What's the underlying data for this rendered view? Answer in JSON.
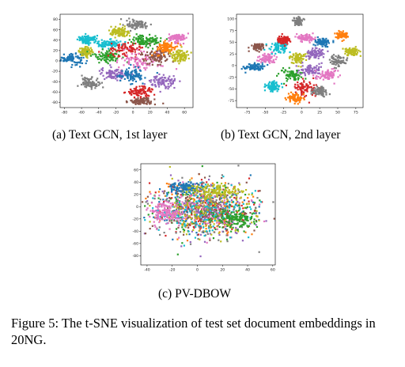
{
  "figure_caption": "Figure 5: The t-SNE visualization of test set document embeddings in 20NG.",
  "panel_captions": {
    "a": "(a) Text GCN, 1st layer",
    "b": "(b) Text GCN, 2nd layer",
    "c": "(c) PV-DBOW"
  },
  "colors": [
    "#1f77b4",
    "#ff7f0e",
    "#2ca02c",
    "#d62728",
    "#9467bd",
    "#8c564b",
    "#e377c2",
    "#7f7f7f",
    "#bcbd22",
    "#17becf"
  ],
  "chart_data": [
    {
      "type": "scatter",
      "title": "(a) Text GCN, 1st layer",
      "xticks": [
        "-80",
        "-60",
        "-40",
        "-20",
        "0",
        "20",
        "40",
        "60"
      ],
      "yticks": [
        "80",
        "60",
        "40",
        "20",
        "0",
        "-20",
        "-40",
        "-60",
        "-80"
      ],
      "xlim": [
        -85,
        70
      ],
      "ylim": [
        -90,
        90
      ],
      "points_per_cluster": 95,
      "clusters": [
        {
          "x": -72,
          "y": 5,
          "sx": 7,
          "sy": 6,
          "c": 0
        },
        {
          "x": -55,
          "y": 18,
          "sx": 4,
          "sy": 4,
          "c": 8
        },
        {
          "x": -52,
          "y": 40,
          "sx": 6,
          "sy": 4,
          "c": 9
        },
        {
          "x": -50,
          "y": -42,
          "sx": 5,
          "sy": 5,
          "c": 7
        },
        {
          "x": -28,
          "y": 32,
          "sx": 7,
          "sy": 4,
          "c": 9
        },
        {
          "x": -30,
          "y": 10,
          "sx": 8,
          "sy": 6,
          "c": 2
        },
        {
          "x": -22,
          "y": -25,
          "sx": 8,
          "sy": 6,
          "c": 4
        },
        {
          "x": -15,
          "y": 55,
          "sx": 6,
          "sy": 5,
          "c": 8
        },
        {
          "x": -8,
          "y": 20,
          "sx": 10,
          "sy": 8,
          "c": 3
        },
        {
          "x": 5,
          "y": 70,
          "sx": 6,
          "sy": 4,
          "c": 7
        },
        {
          "x": 10,
          "y": 0,
          "sx": 12,
          "sy": 9,
          "c": 6
        },
        {
          "x": 15,
          "y": 40,
          "sx": 10,
          "sy": 6,
          "c": 2
        },
        {
          "x": 8,
          "y": -60,
          "sx": 8,
          "sy": 5,
          "c": 3
        },
        {
          "x": 10,
          "y": -78,
          "sx": 7,
          "sy": 3,
          "c": 5
        },
        {
          "x": 28,
          "y": 10,
          "sx": 8,
          "sy": 7,
          "c": 5
        },
        {
          "x": 35,
          "y": -40,
          "sx": 8,
          "sy": 6,
          "c": 4
        },
        {
          "x": 40,
          "y": 25,
          "sx": 6,
          "sy": 6,
          "c": 1
        },
        {
          "x": 52,
          "y": 45,
          "sx": 5,
          "sy": 4,
          "c": 6
        },
        {
          "x": 55,
          "y": 10,
          "sx": 5,
          "sy": 6,
          "c": 8
        },
        {
          "x": -2,
          "y": -28,
          "sx": 8,
          "sy": 7,
          "c": 0
        }
      ]
    },
    {
      "type": "scatter",
      "title": "(b) Text GCN, 2nd layer",
      "xticks": [
        "-75",
        "-50",
        "-25",
        "0",
        "25",
        "50",
        "75"
      ],
      "yticks": [
        "100",
        "75",
        "50",
        "25",
        "0",
        "-25",
        "-50",
        "-75"
      ],
      "xlim": [
        -90,
        85
      ],
      "ylim": [
        -90,
        110
      ],
      "points_per_cluster": 80,
      "clusters": [
        {
          "x": -65,
          "y": -3,
          "sx": 7,
          "sy": 4,
          "c": 0
        },
        {
          "x": -60,
          "y": 40,
          "sx": 4,
          "sy": 4,
          "c": 5
        },
        {
          "x": -48,
          "y": 15,
          "sx": 6,
          "sy": 5,
          "c": 6
        },
        {
          "x": -40,
          "y": -45,
          "sx": 5,
          "sy": 6,
          "c": 9
        },
        {
          "x": -30,
          "y": 40,
          "sx": 7,
          "sy": 6,
          "c": 9
        },
        {
          "x": -25,
          "y": 55,
          "sx": 4,
          "sy": 4,
          "c": 3
        },
        {
          "x": -15,
          "y": -20,
          "sx": 8,
          "sy": 6,
          "c": 2
        },
        {
          "x": -5,
          "y": 15,
          "sx": 6,
          "sy": 6,
          "c": 8
        },
        {
          "x": -5,
          "y": 95,
          "sx": 3,
          "sy": 4,
          "c": 7
        },
        {
          "x": 5,
          "y": 60,
          "sx": 6,
          "sy": 4,
          "c": 6
        },
        {
          "x": 5,
          "y": -50,
          "sx": 8,
          "sy": 8,
          "c": 3
        },
        {
          "x": 12,
          "y": -10,
          "sx": 8,
          "sy": 6,
          "c": 4
        },
        {
          "x": 20,
          "y": 25,
          "sx": 7,
          "sy": 6,
          "c": 4
        },
        {
          "x": 25,
          "y": -55,
          "sx": 6,
          "sy": 5,
          "c": 7
        },
        {
          "x": 30,
          "y": 50,
          "sx": 5,
          "sy": 4,
          "c": 0
        },
        {
          "x": 35,
          "y": -20,
          "sx": 7,
          "sy": 6,
          "c": 6
        },
        {
          "x": 50,
          "y": 10,
          "sx": 6,
          "sy": 6,
          "c": 7
        },
        {
          "x": 55,
          "y": 65,
          "sx": 4,
          "sy": 4,
          "c": 1
        },
        {
          "x": 70,
          "y": 30,
          "sx": 5,
          "sy": 4,
          "c": 8
        },
        {
          "x": -10,
          "y": -70,
          "sx": 6,
          "sy": 5,
          "c": 1
        }
      ]
    },
    {
      "type": "scatter",
      "title": "(c) PV-DBOW",
      "xticks": [
        "-40",
        "-20",
        "0",
        "20",
        "40",
        "60"
      ],
      "yticks": [
        "60",
        "40",
        "20",
        "0",
        "-20",
        "-40",
        "-60",
        "-80"
      ],
      "xlim": [
        -45,
        62
      ],
      "ylim": [
        -95,
        70
      ],
      "points_per_cluster": 130,
      "clusters": [
        {
          "x": 5,
          "y": -5,
          "sx": 20,
          "sy": 22,
          "c": 0
        },
        {
          "x": 5,
          "y": -5,
          "sx": 20,
          "sy": 22,
          "c": 1
        },
        {
          "x": 5,
          "y": -5,
          "sx": 20,
          "sy": 22,
          "c": 2
        },
        {
          "x": 5,
          "y": -5,
          "sx": 20,
          "sy": 22,
          "c": 3
        },
        {
          "x": 5,
          "y": -5,
          "sx": 20,
          "sy": 22,
          "c": 4
        },
        {
          "x": 5,
          "y": -5,
          "sx": 20,
          "sy": 22,
          "c": 5
        },
        {
          "x": 5,
          "y": -5,
          "sx": 20,
          "sy": 22,
          "c": 6
        },
        {
          "x": 5,
          "y": -5,
          "sx": 20,
          "sy": 22,
          "c": 7
        },
        {
          "x": 5,
          "y": -5,
          "sx": 20,
          "sy": 22,
          "c": 8
        },
        {
          "x": 5,
          "y": -5,
          "sx": 20,
          "sy": 22,
          "c": 9
        },
        {
          "x": -8,
          "y": 30,
          "sx": 8,
          "sy": 5,
          "c": 0
        },
        {
          "x": 15,
          "y": 25,
          "sx": 10,
          "sy": 6,
          "c": 8
        },
        {
          "x": -25,
          "y": -10,
          "sx": 6,
          "sy": 8,
          "c": 6
        },
        {
          "x": 30,
          "y": -20,
          "sx": 8,
          "sy": 8,
          "c": 2
        }
      ]
    }
  ]
}
